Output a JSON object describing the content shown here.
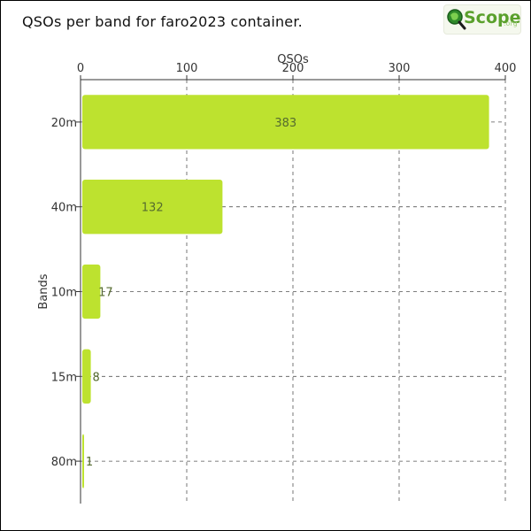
{
  "title": "QSOs per band for faro2023 container.",
  "logo": {
    "text": "Scope",
    "suffix": ".org"
  },
  "colors": {
    "bar": "#bde22f",
    "grid": "#555555",
    "axis": "#333333",
    "text": "#333333"
  },
  "chart_data": {
    "type": "bar",
    "orientation": "horizontal",
    "title": "QSOs per band for faro2023 container.",
    "xlabel": "QSOs",
    "ylabel": "Bands",
    "categories": [
      "20m",
      "40m",
      "10m",
      "15m",
      "80m"
    ],
    "values": [
      383,
      132,
      17,
      8,
      1
    ],
    "xlim": [
      0,
      400
    ],
    "xticks": [
      0,
      100,
      200,
      300,
      400
    ],
    "x_axis_position": "top",
    "grid": true,
    "grid_style": "dashed",
    "data_labels": true
  }
}
